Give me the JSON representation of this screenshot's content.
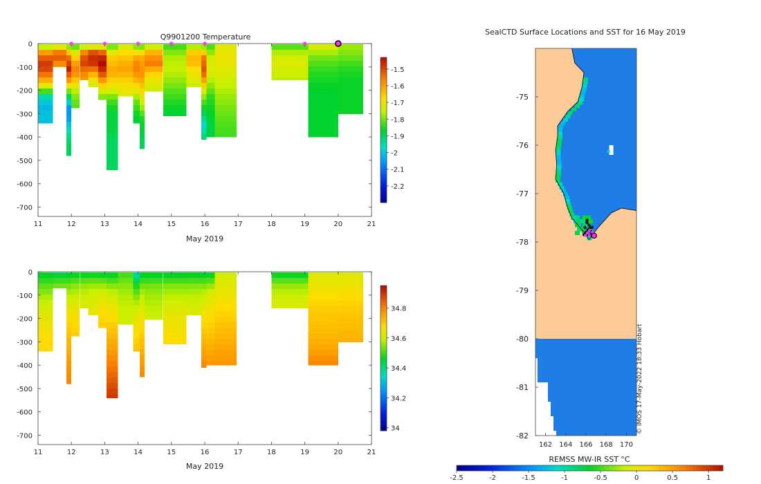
{
  "panel_top": {
    "title": "Q9901200  Temperature",
    "xlabel": "May 2019"
  },
  "panel_bottom": {
    "xlabel": "May 2019"
  },
  "map": {
    "title": "SealCTD Surface Locations and SST for 16 May 2019",
    "colorbar_label": "REMSS MW-IR SST °C",
    "watermark": "© IMOS 17-May-2022 18:33 Hobart",
    "lat_ticks": [
      "-75",
      "-76",
      "-77",
      "-78",
      "-79",
      "-80",
      "-81",
      "-82"
    ],
    "lon_ticks": [
      "162",
      "164",
      "166",
      "168",
      "170"
    ]
  },
  "colors": {
    "land": "#fccb98",
    "ocean": "#1f7de8",
    "profile_marker": "#ff33ff"
  },
  "chart_data": [
    {
      "type": "heatmap",
      "title": "Q9901200  Temperature",
      "xlabel": "May 2019",
      "ylabel": "",
      "xlim": [
        11,
        21
      ],
      "ylim": [
        -740,
        0
      ],
      "x_ticks": [
        11,
        12,
        13,
        14,
        15,
        16,
        17,
        18,
        19,
        20,
        21
      ],
      "y_ticks": [
        0,
        -100,
        -200,
        -300,
        -400,
        -500,
        -600,
        -700
      ],
      "clim": [
        -2.3,
        -1.43
      ],
      "colorbar_ticks": [
        -1.5,
        -1.6,
        -1.7,
        -1.8,
        -1.9,
        -2,
        -2.1,
        -2.2
      ],
      "profile_markers": [
        12,
        13,
        14,
        15,
        16,
        19
      ],
      "highlight_marker": 20,
      "profiles": [
        {
          "x0": 11,
          "x1": 11.45,
          "depth": 340,
          "v": [
            -1.83,
            -1.58,
            -1.48,
            -1.5,
            -1.6,
            -1.75,
            -1.95,
            -2.02,
            -2.0,
            -2.0
          ]
        },
        {
          "x0": 11.45,
          "x1": 11.85,
          "depth": 100,
          "v": [
            -1.83,
            -1.6,
            -1.5,
            -1.55,
            -1.6
          ]
        },
        {
          "x0": 11.85,
          "x1": 12.0,
          "depth": 480,
          "v": [
            -1.85,
            -1.55,
            -1.45,
            -1.6,
            -1.85,
            -2.05,
            -2.05,
            -1.95,
            -1.9,
            -1.9
          ]
        },
        {
          "x0": 12.0,
          "x1": 12.25,
          "depth": 275,
          "v": [
            -1.84,
            -1.72,
            -1.6,
            -1.55,
            -1.65,
            -1.75,
            -1.8,
            -1.82
          ]
        },
        {
          "x0": 12.25,
          "x1": 12.5,
          "depth": 155,
          "v": [
            -1.84,
            -1.55,
            -1.48,
            -1.55,
            -1.6
          ]
        },
        {
          "x0": 12.5,
          "x1": 12.8,
          "depth": 185,
          "v": [
            -1.82,
            -1.5,
            -1.45,
            -1.55,
            -1.68,
            -1.75
          ]
        },
        {
          "x0": 12.8,
          "x1": 13.05,
          "depth": 240,
          "v": [
            -1.82,
            -1.5,
            -1.42,
            -1.48,
            -1.6,
            -1.72,
            -1.82
          ]
        },
        {
          "x0": 13.05,
          "x1": 13.4,
          "depth": 540,
          "v": [
            -1.83,
            -1.65,
            -1.6,
            -1.7,
            -1.82,
            -1.88,
            -1.88,
            -1.9,
            -1.9,
            -1.9
          ]
        },
        {
          "x0": 13.4,
          "x1": 13.85,
          "depth": 225,
          "v": [
            -1.75,
            -1.68,
            -1.62,
            -1.6,
            -1.65,
            -1.7,
            -1.72
          ]
        },
        {
          "x0": 13.85,
          "x1": 14.05,
          "depth": 340,
          "v": [
            -1.84,
            -1.62,
            -1.55,
            -1.6,
            -1.7,
            -1.8,
            -1.85,
            -1.88
          ]
        },
        {
          "x0": 14.05,
          "x1": 14.2,
          "depth": 450,
          "v": [
            -1.84,
            -1.6,
            -1.58,
            -1.65,
            -1.75,
            -1.85,
            -1.88,
            -1.9
          ]
        },
        {
          "x0": 14.2,
          "x1": 14.75,
          "depth": 205,
          "v": [
            -1.8,
            -1.6,
            -1.55,
            -1.65,
            -1.72,
            -1.75
          ]
        },
        {
          "x0": 14.75,
          "x1": 15.45,
          "depth": 310,
          "v": [
            -1.84,
            -1.77,
            -1.75,
            -1.78,
            -1.82,
            -1.85,
            -1.88
          ]
        },
        {
          "x0": 15.45,
          "x1": 15.9,
          "depth": 185,
          "v": [
            -1.82,
            -1.65,
            -1.62,
            -1.68,
            -1.72,
            -1.75
          ]
        },
        {
          "x0": 15.9,
          "x1": 16.05,
          "depth": 410,
          "v": [
            -1.83,
            -1.55,
            -1.5,
            -1.65,
            -1.8,
            -1.88,
            -1.98,
            -1.9
          ]
        },
        {
          "x0": 16.05,
          "x1": 16.3,
          "depth": 400,
          "v": [
            -1.84,
            -1.75,
            -1.72,
            -1.78,
            -1.84,
            -1.86,
            -1.88,
            -1.88
          ]
        },
        {
          "x0": 16.3,
          "x1": 16.95,
          "depth": 400,
          "v": [
            -1.72,
            -1.7,
            -1.72,
            -1.75,
            -1.78,
            -1.8,
            -1.82,
            -1.83
          ]
        },
        {
          "x0": 18.0,
          "x1": 19.1,
          "depth": 155,
          "v": [
            -1.84,
            -1.76,
            -1.72,
            -1.74,
            -1.76
          ]
        },
        {
          "x0": 19.1,
          "x1": 20.0,
          "depth": 400,
          "v": [
            -1.72,
            -1.8,
            -1.84,
            -1.86,
            -1.87,
            -1.87,
            -1.87,
            -1.87
          ]
        },
        {
          "x0": 20.0,
          "x1": 20.75,
          "depth": 300,
          "v": [
            -1.77,
            -1.8,
            -1.84,
            -1.86,
            -1.86,
            -1.86,
            -1.86
          ]
        }
      ]
    },
    {
      "type": "heatmap",
      "title": "",
      "xlabel": "May 2019",
      "ylabel": "",
      "xlim": [
        11,
        21
      ],
      "ylim": [
        -740,
        0
      ],
      "x_ticks": [
        11,
        12,
        13,
        14,
        15,
        16,
        17,
        18,
        19,
        20,
        21
      ],
      "y_ticks": [
        0,
        -100,
        -200,
        -300,
        -400,
        -500,
        -600,
        -700
      ],
      "clim": [
        33.98,
        34.95
      ],
      "colorbar_ticks": [
        34.8,
        34.6,
        34.4,
        34.2,
        34
      ],
      "profiles": [
        {
          "x0": 11,
          "x1": 11.45,
          "depth": 340,
          "v": [
            34.45,
            34.52,
            34.58,
            34.62,
            34.65,
            34.68,
            34.68
          ]
        },
        {
          "x0": 11.45,
          "x1": 11.85,
          "depth": 70,
          "v": [
            34.42,
            34.5,
            34.55
          ]
        },
        {
          "x0": 11.85,
          "x1": 12.0,
          "depth": 480,
          "v": [
            34.45,
            34.55,
            34.62,
            34.68,
            34.72,
            34.75,
            34.78,
            34.8
          ]
        },
        {
          "x0": 12.0,
          "x1": 12.25,
          "depth": 275,
          "v": [
            34.45,
            34.55,
            34.6,
            34.65,
            34.68,
            34.7
          ]
        },
        {
          "x0": 12.25,
          "x1": 12.5,
          "depth": 155,
          "v": [
            34.45,
            34.55,
            34.6,
            34.62
          ]
        },
        {
          "x0": 12.5,
          "x1": 12.8,
          "depth": 185,
          "v": [
            34.45,
            34.55,
            34.6,
            34.62,
            34.64
          ]
        },
        {
          "x0": 12.8,
          "x1": 13.05,
          "depth": 240,
          "v": [
            34.45,
            34.55,
            34.62,
            34.66,
            34.68,
            34.7
          ]
        },
        {
          "x0": 13.05,
          "x1": 13.4,
          "depth": 540,
          "v": [
            34.45,
            34.58,
            34.65,
            34.7,
            34.75,
            34.8,
            34.85,
            34.9
          ]
        },
        {
          "x0": 13.4,
          "x1": 13.85,
          "depth": 225,
          "v": [
            34.5,
            34.55,
            34.58,
            34.6,
            34.6
          ]
        },
        {
          "x0": 13.85,
          "x1": 14.05,
          "depth": 340,
          "v": [
            34.35,
            34.5,
            34.58,
            34.64,
            34.68,
            34.72
          ]
        },
        {
          "x0": 14.05,
          "x1": 14.2,
          "depth": 450,
          "v": [
            34.45,
            34.58,
            34.65,
            34.7,
            34.75,
            34.8
          ]
        },
        {
          "x0": 14.2,
          "x1": 14.75,
          "depth": 205,
          "v": [
            34.45,
            34.55,
            34.58,
            34.6
          ]
        },
        {
          "x0": 14.75,
          "x1": 15.45,
          "depth": 310,
          "v": [
            34.45,
            34.55,
            34.6,
            34.64,
            34.66,
            34.68
          ]
        },
        {
          "x0": 15.45,
          "x1": 15.9,
          "depth": 185,
          "v": [
            34.45,
            34.55,
            34.6,
            34.62
          ]
        },
        {
          "x0": 15.9,
          "x1": 16.05,
          "depth": 410,
          "v": [
            34.45,
            34.58,
            34.64,
            34.7,
            34.75,
            34.8
          ]
        },
        {
          "x0": 16.05,
          "x1": 16.3,
          "depth": 400,
          "v": [
            34.45,
            34.6,
            34.66,
            34.7,
            34.74,
            34.78
          ]
        },
        {
          "x0": 16.3,
          "x1": 16.95,
          "depth": 400,
          "v": [
            34.6,
            34.64,
            34.68,
            34.72,
            34.75,
            34.78
          ]
        },
        {
          "x0": 18.0,
          "x1": 19.1,
          "depth": 155,
          "v": [
            34.45,
            34.55,
            34.6,
            34.62
          ]
        },
        {
          "x0": 19.1,
          "x1": 20.0,
          "depth": 400,
          "v": [
            34.62,
            34.66,
            34.7,
            34.72,
            34.75,
            34.8
          ]
        },
        {
          "x0": 20.0,
          "x1": 20.75,
          "depth": 300,
          "v": [
            34.62,
            34.66,
            34.7,
            34.72,
            34.74
          ]
        }
      ]
    },
    {
      "type": "heatmap",
      "title": "SealCTD Surface Locations and SST for 16 May 2019",
      "xlabel": "",
      "ylabel": "",
      "xlim": [
        161,
        171
      ],
      "ylim": [
        -82,
        -74
      ],
      "x_ticks": [
        162,
        164,
        166,
        168,
        170
      ],
      "y_ticks": [
        -75,
        -76,
        -77,
        -78,
        -79,
        -80,
        -81,
        -82
      ],
      "colorbar_label": "REMSS MW-IR SST °C",
      "colorbar_ticks": [
        -2.5,
        -2,
        -1.5,
        -1,
        -0.5,
        0,
        0.5,
        1
      ],
      "clim": [
        -2.5,
        1.2
      ],
      "ocean_sst": -1.8,
      "coast_sst": -1.0,
      "ice_shelf_lat": -80,
      "coast": [
        {
          "lat": -74.0,
          "lon": 164.6
        },
        {
          "lat": -74.3,
          "lon": 164.9
        },
        {
          "lat": -74.5,
          "lon": 165.8
        },
        {
          "lat": -74.8,
          "lon": 165.6
        },
        {
          "lat": -75.1,
          "lon": 165.2
        },
        {
          "lat": -75.3,
          "lon": 164.2
        },
        {
          "lat": -75.6,
          "lon": 163.2
        },
        {
          "lat": -75.8,
          "lon": 163.2
        },
        {
          "lat": -76.1,
          "lon": 163.0
        },
        {
          "lat": -76.4,
          "lon": 163.1
        },
        {
          "lat": -76.7,
          "lon": 163.0
        },
        {
          "lat": -77.0,
          "lon": 163.8
        },
        {
          "lat": -77.3,
          "lon": 164.2
        },
        {
          "lat": -77.5,
          "lon": 164.6
        },
        {
          "lat": -77.8,
          "lon": 165.8
        },
        {
          "lat": -77.95,
          "lon": 166.3
        },
        {
          "lat": -77.7,
          "lon": 167.2
        },
        {
          "lat": -77.4,
          "lon": 168.5
        },
        {
          "lat": -77.3,
          "lon": 169.5
        },
        {
          "lat": -77.35,
          "lon": 171.0
        }
      ],
      "profiles": [
        {
          "lon": 166.1,
          "lat": -77.6
        },
        {
          "lon": 166.3,
          "lat": -77.65
        },
        {
          "lon": 166.4,
          "lat": -77.7
        },
        {
          "lon": 166.2,
          "lat": -77.75
        },
        {
          "lon": 166.0,
          "lat": -77.8
        },
        {
          "lon": 166.5,
          "lat": -77.78
        },
        {
          "lon": 165.8,
          "lat": -77.85
        },
        {
          "lon": 166.2,
          "lat": -77.85
        },
        {
          "lon": 166.5,
          "lat": -77.85
        },
        {
          "lon": 166.1,
          "lat": -77.55
        },
        {
          "lon": 165.9,
          "lat": -77.7
        },
        {
          "lon": 166.6,
          "lat": -77.7
        }
      ],
      "highlight_profile": {
        "lon": 166.8,
        "lat": -77.87
      }
    }
  ]
}
